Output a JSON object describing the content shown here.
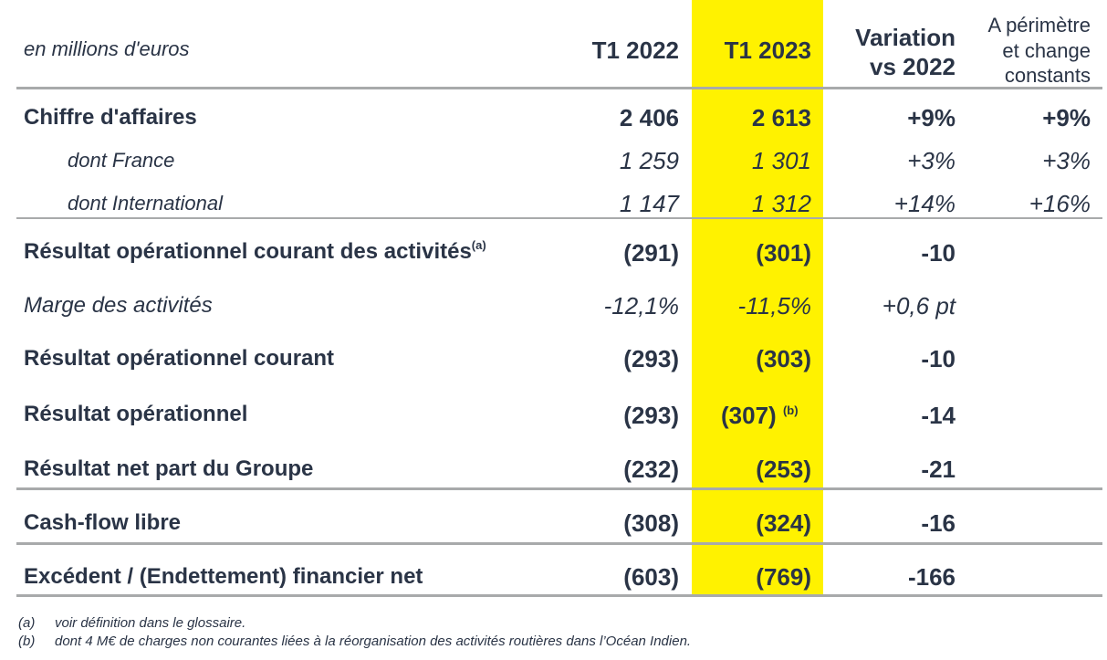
{
  "header": {
    "unit": "en millions d'euros",
    "col_2022": "T1 2022",
    "col_2023": "T1 2023",
    "col_var_l1": "Variation",
    "col_var_l2": "vs 2022",
    "col_pc_l1": "A périmètre",
    "col_pc_l2": "et change",
    "col_pc_l3": "constants"
  },
  "rows": {
    "ca": {
      "label": "Chiffre d'affaires",
      "v2022": "2 406",
      "v2023": "2 613",
      "var": "+9%",
      "pc": "+9%"
    },
    "france": {
      "label": "dont France",
      "v2022": "1 259",
      "v2023": "1 301",
      "var": "+3%",
      "pc": "+3%"
    },
    "intl": {
      "label": "dont International",
      "v2022": "1 147",
      "v2023": "1 312",
      "var": "+14%",
      "pc": "+16%"
    },
    "roca": {
      "label": "Résultat opérationnel courant des activités",
      "sup": "(a)",
      "v2022": "(291)",
      "v2023": "(301)",
      "var": "-10"
    },
    "marge": {
      "label": "Marge des activités",
      "v2022": "-12,1%",
      "v2023": "-11,5%",
      "var": "+0,6 pt"
    },
    "roc": {
      "label": "Résultat opérationnel courant",
      "v2022": "(293)",
      "v2023": "(303)",
      "var": "-10"
    },
    "ro": {
      "label": "Résultat opérationnel",
      "v2022": "(293)",
      "v2023": "(307)",
      "sup": "(b)",
      "var": "-14"
    },
    "rn": {
      "label": "Résultat net part du Groupe",
      "v2022": "(232)",
      "v2023": "(253)",
      "var": "-21"
    },
    "cfl": {
      "label": "Cash-flow libre",
      "v2022": "(308)",
      "v2023": "(324)",
      "var": "-16"
    },
    "dette": {
      "label": "Excédent / (Endettement) financier net",
      "v2022": "(603)",
      "v2023": "(769)",
      "var": "-166"
    }
  },
  "notes": {
    "a_mark": "(a)",
    "a_text": "voir définition dans le glossaire.",
    "b_mark": "(b)",
    "b_text": "dont 4 M€ de charges non courantes liées à la réorganisation des activités routières dans l’Océan Indien."
  },
  "colors": {
    "highlight": "#fff200",
    "text": "#2a3446",
    "rule": "#a8aaab"
  }
}
